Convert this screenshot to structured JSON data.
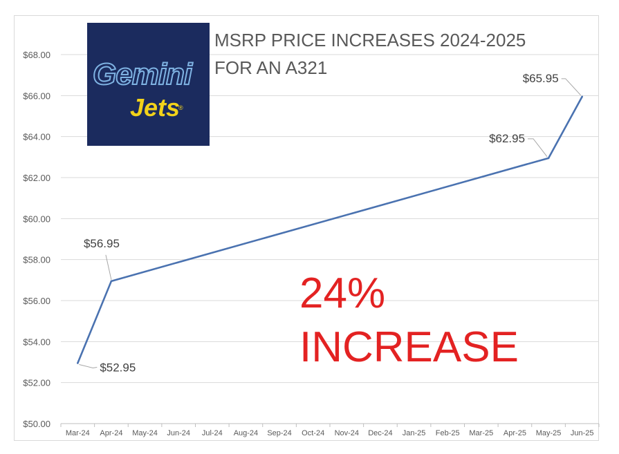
{
  "chart_data": {
    "type": "line",
    "title": [
      "MSRP PRICE INCREASES 2024-2025",
      "FOR AN A321"
    ],
    "categories": [
      "Mar-24",
      "Apr-24",
      "May-24",
      "Jun-24",
      "Jul-24",
      "Aug-24",
      "Sep-24",
      "Oct-24",
      "Nov-24",
      "Dec-24",
      "Jan-25",
      "Feb-25",
      "Mar-25",
      "Apr-25",
      "May-25",
      "Jun-25"
    ],
    "series": [
      {
        "points": [
          {
            "x": "Mar-24",
            "y": 52.95,
            "label": "$52.95"
          },
          {
            "x": "Apr-24",
            "y": 56.95,
            "label": "$56.95"
          },
          {
            "x": "May-25",
            "y": 62.95,
            "label": "$62.95"
          },
          {
            "x": "Jun-25",
            "y": 65.95,
            "label": "$65.95"
          }
        ]
      }
    ],
    "ylim": [
      50,
      68
    ],
    "yticks": [
      "$50.00",
      "$52.00",
      "$54.00",
      "$56.00",
      "$58.00",
      "$60.00",
      "$62.00",
      "$64.00",
      "$66.00",
      "$68.00"
    ],
    "grid": true,
    "annotation": [
      "24%",
      "INCREASE"
    ],
    "logo_text": [
      "Gemini",
      "Jets"
    ],
    "colors": {
      "line": "#4a72b0",
      "annotation": "#e32222",
      "logo_bg": "#1b2b5e",
      "logo_yellow": "#f2d21a"
    }
  }
}
